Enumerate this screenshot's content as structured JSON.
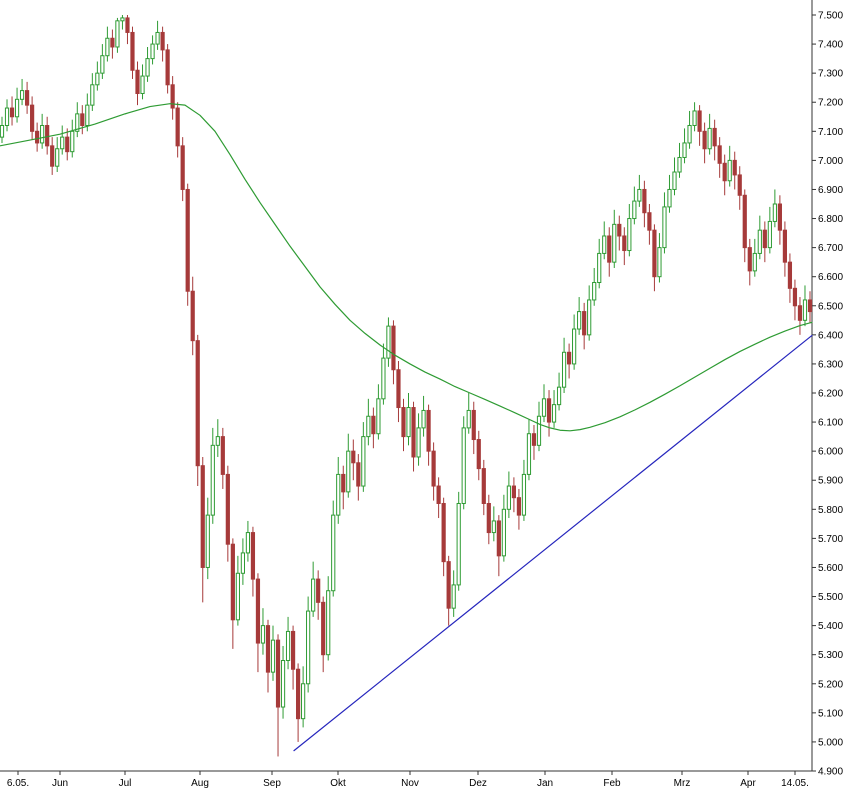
{
  "chart_data": {
    "type": "candlestick",
    "title": "",
    "x_axis": {
      "labels": [
        "6.05.",
        "Jun",
        "Jul",
        "Aug",
        "Sep",
        "Okt",
        "Nov",
        "Dez",
        "Jan",
        "Feb",
        "Mrz",
        "Apr",
        "14.05."
      ],
      "positions": [
        18,
        60,
        125,
        200,
        272,
        338,
        410,
        478,
        545,
        612,
        682,
        748,
        795
      ]
    },
    "y_axis": {
      "min": 4900,
      "max": 7500,
      "step": 100,
      "tick_labels": [
        "7.500",
        "7.400",
        "7.300",
        "7.200",
        "7.100",
        "7.000",
        "6.900",
        "6.800",
        "6.700",
        "6.600",
        "6.500",
        "6.400",
        "6.300",
        "6.200",
        "6.100",
        "6.000",
        "5.900",
        "5.800",
        "5.700",
        "5.600",
        "5.500",
        "5.400",
        "5.300",
        "5.200",
        "5.100",
        "5.000",
        "4.900"
      ]
    },
    "candles": [
      [
        7080,
        7150,
        7060,
        7120
      ],
      [
        7120,
        7210,
        7100,
        7180
      ],
      [
        7180,
        7220,
        7120,
        7150
      ],
      [
        7150,
        7250,
        7130,
        7210
      ],
      [
        7210,
        7280,
        7190,
        7240
      ],
      [
        7240,
        7270,
        7160,
        7190
      ],
      [
        7190,
        7220,
        7070,
        7100
      ],
      [
        7100,
        7130,
        7030,
        7060
      ],
      [
        7060,
        7160,
        7040,
        7120
      ],
      [
        7120,
        7150,
        7020,
        7050
      ],
      [
        7050,
        7080,
        6950,
        6980
      ],
      [
        6980,
        7080,
        6960,
        7040
      ],
      [
        7040,
        7120,
        7020,
        7080
      ],
      [
        7080,
        7110,
        7000,
        7030
      ],
      [
        7030,
        7140,
        7010,
        7100
      ],
      [
        7100,
        7200,
        7080,
        7160
      ],
      [
        7160,
        7190,
        7090,
        7120
      ],
      [
        7120,
        7230,
        7100,
        7190
      ],
      [
        7190,
        7300,
        7170,
        7260
      ],
      [
        7260,
        7340,
        7240,
        7300
      ],
      [
        7300,
        7400,
        7280,
        7360
      ],
      [
        7360,
        7460,
        7340,
        7420
      ],
      [
        7420,
        7450,
        7350,
        7390
      ],
      [
        7390,
        7490,
        7370,
        7480
      ],
      [
        7480,
        7500,
        7450,
        7490
      ],
      [
        7490,
        7500,
        7400,
        7440
      ],
      [
        7440,
        7460,
        7280,
        7310
      ],
      [
        7310,
        7340,
        7190,
        7230
      ],
      [
        7230,
        7330,
        7210,
        7290
      ],
      [
        7290,
        7390,
        7270,
        7350
      ],
      [
        7350,
        7430,
        7330,
        7400
      ],
      [
        7400,
        7480,
        7380,
        7440
      ],
      [
        7440,
        7460,
        7340,
        7380
      ],
      [
        7380,
        7400,
        7230,
        7260
      ],
      [
        7260,
        7290,
        7140,
        7180
      ],
      [
        7180,
        7200,
        7010,
        7050
      ],
      [
        7050,
        7080,
        6860,
        6900
      ],
      [
        6900,
        6920,
        6500,
        6550
      ],
      [
        6550,
        6600,
        6330,
        6380
      ],
      [
        6380,
        6400,
        5880,
        5950
      ],
      [
        5950,
        5980,
        5480,
        5600
      ],
      [
        5600,
        5840,
        5560,
        5780
      ],
      [
        5780,
        6080,
        5750,
        6020
      ],
      [
        6020,
        6110,
        5980,
        6050
      ],
      [
        6050,
        6080,
        5870,
        5920
      ],
      [
        5920,
        5950,
        5620,
        5680
      ],
      [
        5680,
        5700,
        5320,
        5420
      ],
      [
        5420,
        5640,
        5400,
        5580
      ],
      [
        5580,
        5700,
        5540,
        5650
      ],
      [
        5650,
        5760,
        5620,
        5720
      ],
      [
        5720,
        5740,
        5500,
        5560
      ],
      [
        5560,
        5580,
        5240,
        5340
      ],
      [
        5340,
        5460,
        5300,
        5400
      ],
      [
        5400,
        5420,
        5170,
        5240
      ],
      [
        5240,
        5400,
        5210,
        5350
      ],
      [
        5350,
        5370,
        4950,
        5120
      ],
      [
        5120,
        5330,
        5080,
        5280
      ],
      [
        5280,
        5430,
        5250,
        5380
      ],
      [
        5380,
        5400,
        5180,
        5250
      ],
      [
        5250,
        5270,
        5000,
        5080
      ],
      [
        5080,
        5260,
        5050,
        5200
      ],
      [
        5200,
        5500,
        5170,
        5450
      ],
      [
        5450,
        5620,
        5430,
        5560
      ],
      [
        5560,
        5590,
        5420,
        5480
      ],
      [
        5480,
        5500,
        5240,
        5300
      ],
      [
        5300,
        5570,
        5280,
        5520
      ],
      [
        5520,
        5830,
        5500,
        5780
      ],
      [
        5780,
        5980,
        5750,
        5920
      ],
      [
        5920,
        5950,
        5800,
        5860
      ],
      [
        5860,
        6060,
        5840,
        6000
      ],
      [
        6000,
        6040,
        5900,
        5960
      ],
      [
        5960,
        5990,
        5830,
        5880
      ],
      [
        5880,
        6100,
        5860,
        6050
      ],
      [
        6050,
        6180,
        6020,
        6120
      ],
      [
        6120,
        6150,
        6010,
        6060
      ],
      [
        6060,
        6230,
        6040,
        6180
      ],
      [
        6180,
        6370,
        6160,
        6320
      ],
      [
        6320,
        6460,
        6290,
        6430
      ],
      [
        6430,
        6450,
        6230,
        6280
      ],
      [
        6280,
        6310,
        6100,
        6150
      ],
      [
        6150,
        6180,
        6000,
        6050
      ],
      [
        6050,
        6200,
        6020,
        6150
      ],
      [
        6150,
        6170,
        5930,
        5980
      ],
      [
        5980,
        6130,
        5950,
        6080
      ],
      [
        6080,
        6190,
        6050,
        6140
      ],
      [
        6140,
        6160,
        5950,
        6000
      ],
      [
        6000,
        6030,
        5830,
        5880
      ],
      [
        5880,
        5910,
        5770,
        5820
      ],
      [
        5820,
        5840,
        5570,
        5620
      ],
      [
        5620,
        5640,
        5400,
        5460
      ],
      [
        5460,
        5590,
        5430,
        5540
      ],
      [
        5540,
        5860,
        5520,
        5820
      ],
      [
        5820,
        6120,
        5800,
        6080
      ],
      [
        6080,
        6200,
        6060,
        6140
      ],
      [
        6140,
        6170,
        5990,
        6040
      ],
      [
        6040,
        6070,
        5900,
        5940
      ],
      [
        5940,
        5970,
        5780,
        5820
      ],
      [
        5820,
        5850,
        5680,
        5720
      ],
      [
        5720,
        5810,
        5690,
        5760
      ],
      [
        5760,
        5780,
        5570,
        5640
      ],
      [
        5640,
        5850,
        5620,
        5800
      ],
      [
        5800,
        5930,
        5770,
        5880
      ],
      [
        5880,
        5910,
        5790,
        5840
      ],
      [
        5840,
        5870,
        5730,
        5780
      ],
      [
        5780,
        5970,
        5760,
        5920
      ],
      [
        5920,
        6110,
        5900,
        6060
      ],
      [
        6060,
        6090,
        5970,
        6020
      ],
      [
        6020,
        6170,
        6000,
        6120
      ],
      [
        6120,
        6230,
        6100,
        6180
      ],
      [
        6180,
        6210,
        6050,
        6100
      ],
      [
        6100,
        6210,
        6080,
        6160
      ],
      [
        6160,
        6270,
        6140,
        6220
      ],
      [
        6220,
        6390,
        6200,
        6340
      ],
      [
        6340,
        6370,
        6250,
        6300
      ],
      [
        6300,
        6470,
        6280,
        6420
      ],
      [
        6420,
        6530,
        6400,
        6480
      ],
      [
        6480,
        6510,
        6350,
        6400
      ],
      [
        6400,
        6570,
        6380,
        6520
      ],
      [
        6520,
        6630,
        6500,
        6580
      ],
      [
        6580,
        6730,
        6560,
        6680
      ],
      [
        6680,
        6790,
        6660,
        6740
      ],
      [
        6740,
        6770,
        6600,
        6650
      ],
      [
        6650,
        6830,
        6630,
        6780
      ],
      [
        6780,
        6810,
        6690,
        6740
      ],
      [
        6740,
        6770,
        6640,
        6690
      ],
      [
        6690,
        6850,
        6670,
        6800
      ],
      [
        6800,
        6910,
        6780,
        6860
      ],
      [
        6860,
        6950,
        6840,
        6900
      ],
      [
        6900,
        6930,
        6770,
        6820
      ],
      [
        6820,
        6850,
        6710,
        6760
      ],
      [
        6760,
        6780,
        6550,
        6600
      ],
      [
        6600,
        6750,
        6580,
        6700
      ],
      [
        6700,
        6890,
        6680,
        6840
      ],
      [
        6840,
        6950,
        6820,
        6900
      ],
      [
        6900,
        7010,
        6880,
        6960
      ],
      [
        6960,
        7060,
        6940,
        7010
      ],
      [
        7010,
        7110,
        6990,
        7060
      ],
      [
        7060,
        7170,
        7040,
        7120
      ],
      [
        7120,
        7200,
        7100,
        7170
      ],
      [
        7170,
        7190,
        7050,
        7100
      ],
      [
        7100,
        7130,
        6990,
        7040
      ],
      [
        7040,
        7160,
        7020,
        7110
      ],
      [
        7110,
        7140,
        7000,
        7050
      ],
      [
        7050,
        7080,
        6940,
        6990
      ],
      [
        6990,
        7020,
        6880,
        6930
      ],
      [
        6930,
        7050,
        6910,
        7000
      ],
      [
        7000,
        7030,
        6900,
        6950
      ],
      [
        6950,
        6980,
        6830,
        6880
      ],
      [
        6880,
        6900,
        6650,
        6700
      ],
      [
        6700,
        6730,
        6570,
        6620
      ],
      [
        6620,
        6730,
        6600,
        6680
      ],
      [
        6680,
        6810,
        6660,
        6760
      ],
      [
        6760,
        6790,
        6650,
        6700
      ],
      [
        6700,
        6840,
        6680,
        6790
      ],
      [
        6790,
        6900,
        6770,
        6850
      ],
      [
        6850,
        6880,
        6710,
        6760
      ],
      [
        6760,
        6790,
        6600,
        6650
      ],
      [
        6650,
        6680,
        6510,
        6560
      ],
      [
        6560,
        6590,
        6450,
        6500
      ],
      [
        6500,
        6530,
        6400,
        6450
      ],
      [
        6450,
        6570,
        6430,
        6520
      ],
      [
        6520,
        6550,
        6440,
        6480
      ]
    ],
    "overlays": [
      {
        "name": "moving-average",
        "color": "#2e9b33",
        "points": [
          [
            0,
            7050
          ],
          [
            30,
            7070
          ],
          [
            60,
            7090
          ],
          [
            95,
            7125
          ],
          [
            125,
            7160
          ],
          [
            150,
            7185
          ],
          [
            170,
            7195
          ],
          [
            185,
            7190
          ],
          [
            200,
            7155
          ],
          [
            215,
            7100
          ],
          [
            230,
            7020
          ],
          [
            245,
            6935
          ],
          [
            260,
            6855
          ],
          [
            275,
            6780
          ],
          [
            290,
            6705
          ],
          [
            305,
            6635
          ],
          [
            320,
            6565
          ],
          [
            335,
            6505
          ],
          [
            350,
            6450
          ],
          [
            365,
            6405
          ],
          [
            380,
            6365
          ],
          [
            395,
            6330
          ],
          [
            410,
            6300
          ],
          [
            425,
            6272
          ],
          [
            440,
            6248
          ],
          [
            455,
            6222
          ],
          [
            470,
            6200
          ],
          [
            485,
            6178
          ],
          [
            500,
            6155
          ],
          [
            515,
            6132
          ],
          [
            530,
            6108
          ],
          [
            540,
            6092
          ],
          [
            550,
            6080
          ],
          [
            560,
            6072
          ],
          [
            570,
            6070
          ],
          [
            580,
            6074
          ],
          [
            590,
            6082
          ],
          [
            605,
            6098
          ],
          [
            620,
            6118
          ],
          [
            635,
            6142
          ],
          [
            650,
            6168
          ],
          [
            665,
            6196
          ],
          [
            680,
            6225
          ],
          [
            695,
            6255
          ],
          [
            710,
            6285
          ],
          [
            725,
            6315
          ],
          [
            740,
            6343
          ],
          [
            755,
            6368
          ],
          [
            770,
            6392
          ],
          [
            785,
            6413
          ],
          [
            800,
            6432
          ],
          [
            812,
            6443
          ]
        ]
      },
      {
        "name": "trendline",
        "color": "#2626bd",
        "points": [
          [
            294,
            4970
          ],
          [
            812,
            6398
          ]
        ]
      }
    ],
    "colors": {
      "up": "#2e9b33",
      "up_fill": "#ffffff",
      "down": "#a63a3a",
      "axis": "#333333",
      "axis_text": "#000000",
      "background": "#ffffff"
    }
  }
}
